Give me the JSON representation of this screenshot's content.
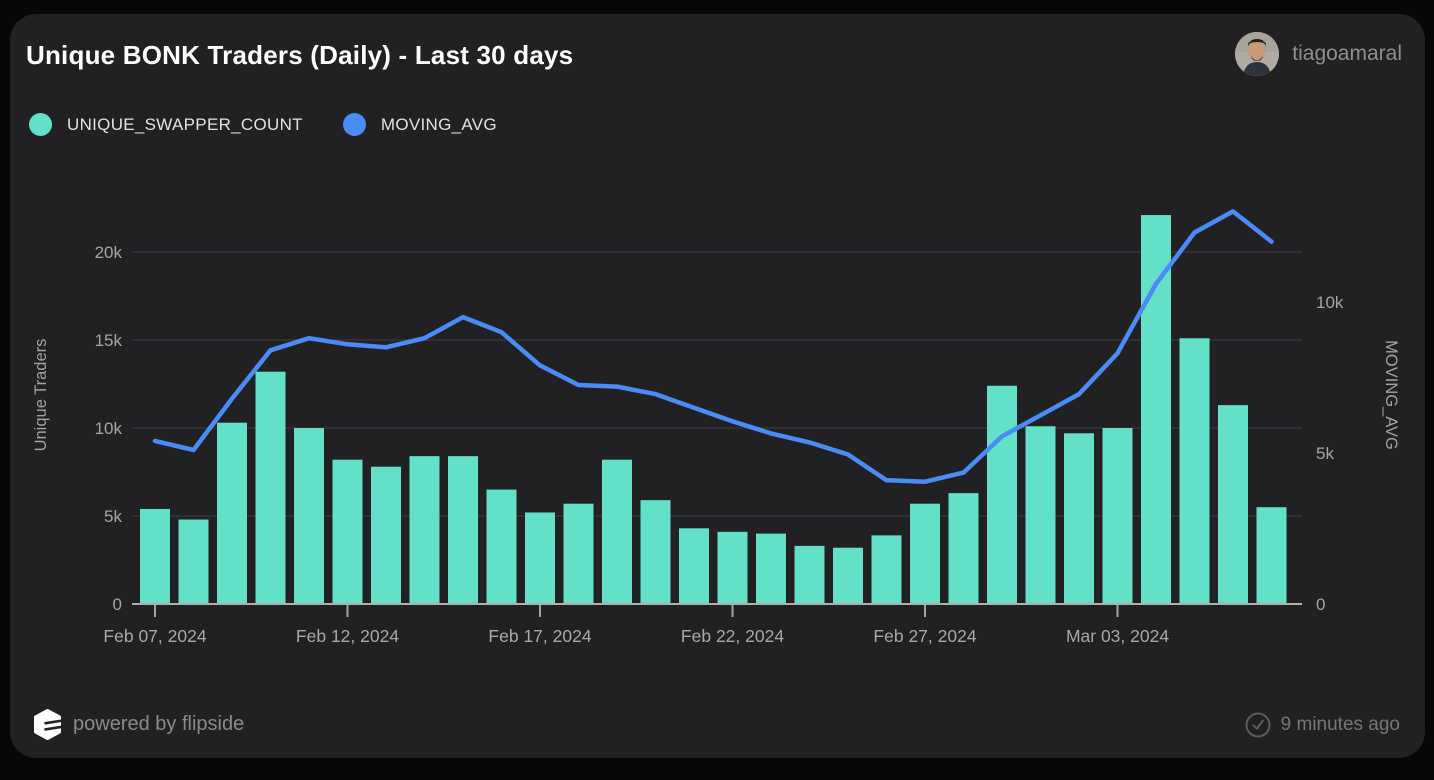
{
  "header": {
    "title": "Unique BONK Traders (Daily) - Last 30 days",
    "user": {
      "name": "tiagoamaral"
    }
  },
  "legend": [
    {
      "label": "UNIQUE_SWAPPER_COUNT",
      "color": "#62E0C8"
    },
    {
      "label": "MOVING_AVG",
      "color": "#4B8BF5"
    }
  ],
  "footer": {
    "powered_by": "powered by flipside",
    "updated": "9 minutes ago"
  },
  "colors": {
    "page_bg": "#070707",
    "card_bg": "#212124",
    "bar_teal": "#62E0C8",
    "line_blue": "#4B8BF5",
    "gridline": "#3b3b3d",
    "axis_line": "#b3aeae",
    "tick_mark": "#a8a3a3",
    "tick_text": "#a5a5a5",
    "axis_title_text": "#a3a3a3",
    "x_tick_text": "#a8a8a8"
  },
  "chart_data": {
    "type": "bar",
    "grid": true,
    "legend_position": "top-left",
    "x": [
      "Feb 07, 2024",
      "Feb 08, 2024",
      "Feb 09, 2024",
      "Feb 10, 2024",
      "Feb 11, 2024",
      "Feb 12, 2024",
      "Feb 13, 2024",
      "Feb 14, 2024",
      "Feb 15, 2024",
      "Feb 16, 2024",
      "Feb 17, 2024",
      "Feb 18, 2024",
      "Feb 19, 2024",
      "Feb 20, 2024",
      "Feb 21, 2024",
      "Feb 22, 2024",
      "Feb 23, 2024",
      "Feb 24, 2024",
      "Feb 25, 2024",
      "Feb 26, 2024",
      "Feb 27, 2024",
      "Feb 28, 2024",
      "Feb 29, 2024",
      "Mar 01, 2024",
      "Mar 02, 2024",
      "Mar 03, 2024",
      "Mar 04, 2024",
      "Mar 05, 2024",
      "Mar 06, 2024",
      "Mar 07, 2024"
    ],
    "x_tick_indices": [
      0,
      5,
      10,
      15,
      20,
      25
    ],
    "x_tick_labels": [
      "Feb 07, 2024",
      "Feb 12, 2024",
      "Feb 17, 2024",
      "Feb 22, 2024",
      "Feb 27, 2024",
      "Mar 03, 2024"
    ],
    "series": [
      {
        "name": "UNIQUE_SWAPPER_COUNT",
        "type": "bar",
        "axis": "left",
        "color": "#62E0C8",
        "values": [
          5400,
          4800,
          10300,
          13200,
          10000,
          8200,
          7800,
          8400,
          8400,
          6500,
          5200,
          5700,
          8200,
          5900,
          4300,
          4100,
          4000,
          3300,
          3200,
          3900,
          5700,
          6300,
          12400,
          10100,
          9700,
          10000,
          22100,
          15100,
          11300,
          5500
        ]
      },
      {
        "name": "MOVING_AVG",
        "type": "line",
        "axis": "right",
        "color": "#4B8BF5",
        "values": [
          5400,
          5100,
          6800,
          8400,
          8800,
          8600,
          8500,
          8800,
          9500,
          9000,
          7900,
          7250,
          7200,
          6950,
          6500,
          6050,
          5650,
          5350,
          4950,
          4100,
          4050,
          4350,
          5550,
          6250,
          6950,
          8300,
          10600,
          12300,
          13000,
          12000
        ]
      }
    ],
    "left_axis": {
      "title": "Unique Traders",
      "range": [
        0,
        22700
      ],
      "ticks": [
        {
          "value": 0,
          "label": "0"
        },
        {
          "value": 5000,
          "label": "5k"
        },
        {
          "value": 10000,
          "label": "10k"
        },
        {
          "value": 15000,
          "label": "15k"
        },
        {
          "value": 20000,
          "label": "20k"
        }
      ],
      "grid_values": [
        5000,
        10000,
        15000,
        20000
      ]
    },
    "right_axis": {
      "title": "MOVING_AVG",
      "range": [
        0,
        13250
      ],
      "ticks": [
        {
          "value": 0,
          "label": "0"
        },
        {
          "value": 5000,
          "label": "5k"
        },
        {
          "value": 10000,
          "label": "10k"
        }
      ]
    }
  }
}
